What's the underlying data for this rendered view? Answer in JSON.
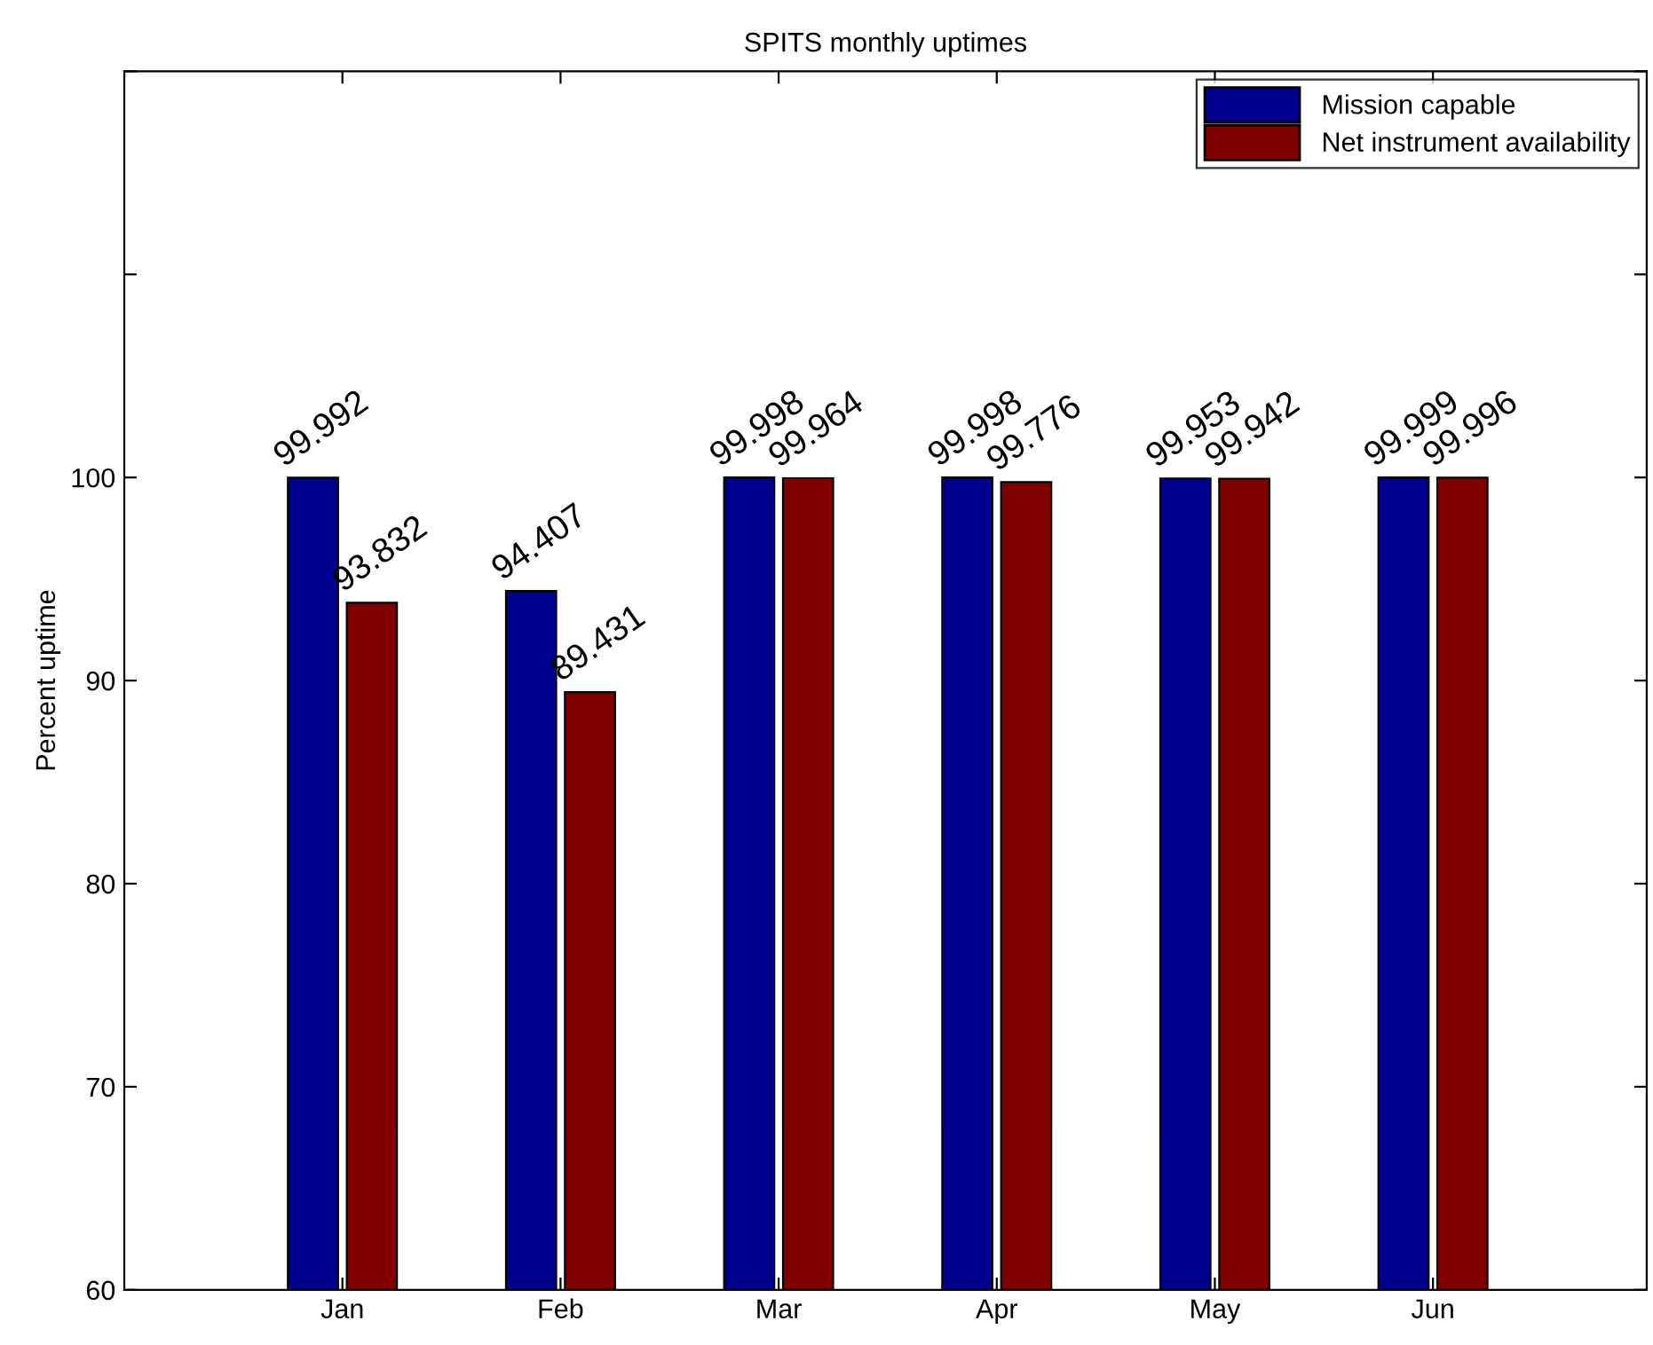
{
  "chart_data": {
    "type": "bar",
    "title": "SPITS monthly uptimes",
    "ylabel": "Percent uptime",
    "categories": [
      "Jan",
      "Feb",
      "Mar",
      "Apr",
      "May",
      "Jun"
    ],
    "series": [
      {
        "name": "Mission capable",
        "color": "#00008f",
        "values": [
          99.992,
          94.407,
          99.998,
          99.998,
          99.953,
          99.999
        ]
      },
      {
        "name": "Net instrument availability",
        "color": "#800000",
        "values": [
          93.832,
          89.431,
          99.964,
          99.776,
          99.942,
          99.996
        ]
      }
    ],
    "ylim": [
      60,
      120
    ],
    "yticks": [
      60,
      70,
      80,
      90,
      100,
      {
        "value": 110,
        "label": null
      },
      {
        "value": 120,
        "label": null
      }
    ],
    "data_labels": true,
    "grid": false,
    "legend": "top right"
  }
}
